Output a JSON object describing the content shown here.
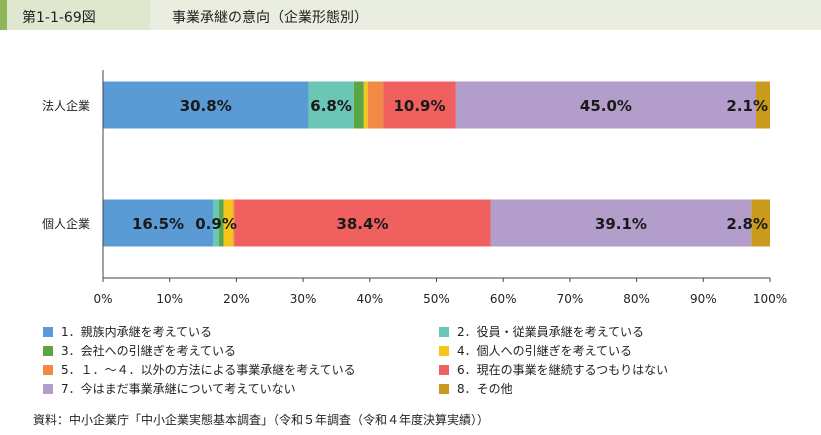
{
  "figure": {
    "number": "第1-1-69図",
    "title": "事業承継の意向（企業形態別）"
  },
  "chart_data": {
    "type": "bar",
    "orientation": "horizontal",
    "stacked": true,
    "categories": [
      "法人企業",
      "個人企業"
    ],
    "series": [
      {
        "name": "1．親族内承継を考えている",
        "values": [
          30.8,
          16.5
        ],
        "color": "#5b9bd5",
        "labels": [
          "30.8%",
          "16.5%"
        ]
      },
      {
        "name": "2．役員・従業員承継を考えている",
        "values": [
          6.8,
          0.9
        ],
        "color": "#6cc6b6",
        "labels": [
          "6.8%",
          "0.9%"
        ]
      },
      {
        "name": "3．会社への引継ぎを考えている",
        "values": [
          1.5,
          0.7
        ],
        "color": "#5aa548",
        "labels": [
          "",
          ""
        ]
      },
      {
        "name": "4．個人への引継ぎを考えている",
        "values": [
          0.6,
          1.4
        ],
        "color": "#f5c51a",
        "labels": [
          "",
          ""
        ]
      },
      {
        "name": "5．１．～４．以外の方法による事業承継を考えている",
        "values": [
          2.3,
          0.2
        ],
        "color": "#f08a45",
        "labels": [
          "",
          ""
        ]
      },
      {
        "name": "6．現在の事業を継続するつもりはない",
        "values": [
          10.9,
          38.4
        ],
        "color": "#f0605e",
        "labels": [
          "10.9%",
          "38.4%"
        ]
      },
      {
        "name": "7．今はまだ事業承継について考えていない",
        "values": [
          45.0,
          39.1
        ],
        "color": "#b39ecb",
        "labels": [
          "45.0%",
          "39.1%"
        ]
      },
      {
        "name": "8．その他",
        "values": [
          2.1,
          2.8
        ],
        "color": "#c99a1c",
        "labels": [
          "2.1%",
          "2.8%"
        ]
      }
    ],
    "x_ticks": [
      "0%",
      "10%",
      "20%",
      "30%",
      "40%",
      "50%",
      "60%",
      "70%",
      "80%",
      "90%",
      "100%"
    ],
    "xlim": [
      0,
      100
    ],
    "grid": false,
    "legend_position": "bottom"
  },
  "source": "資料：中小企業庁「中小企業実態基本調査」（令和５年調査（令和４年度決算実績））"
}
